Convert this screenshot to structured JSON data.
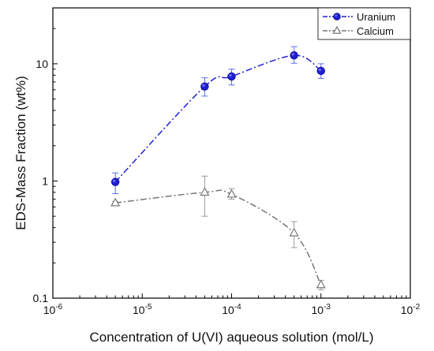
{
  "chart_data": {
    "type": "scatter",
    "xscale": "log",
    "yscale": "log",
    "xlabel": "Concentration of U(VI) aqueous solution (mol/L)",
    "ylabel": "EDS-Mass Fraction (wt%)",
    "xlim": [
      1e-06,
      0.01
    ],
    "ylim": [
      0.1,
      30
    ],
    "x_ticks": [
      {
        "value": 1e-06,
        "base": "10",
        "exp": "-6"
      },
      {
        "value": 1e-05,
        "base": "10",
        "exp": "-5"
      },
      {
        "value": 0.0001,
        "base": "10",
        "exp": "-4"
      },
      {
        "value": 0.001,
        "base": "10",
        "exp": "-3"
      },
      {
        "value": 0.01,
        "base": "10",
        "exp": "-2"
      }
    ],
    "y_ticks": [
      {
        "value": 0.1,
        "label": "0.1"
      },
      {
        "value": 1,
        "label": "1"
      },
      {
        "value": 10,
        "label": "10"
      }
    ],
    "legend_position": "top-right",
    "grid": false,
    "series": [
      {
        "name": "Uranium",
        "color": "#1f1fd6",
        "marker": "filled-circle",
        "line": "dash-dot",
        "x": [
          5e-06,
          5e-05,
          0.0001,
          0.0005,
          0.001
        ],
        "y": [
          0.98,
          6.4,
          7.8,
          11.8,
          8.7
        ],
        "err_low": [
          0.78,
          5.3,
          6.6,
          10.1,
          7.5
        ],
        "err_high": [
          1.17,
          7.6,
          9.0,
          14.0,
          10.0
        ]
      },
      {
        "name": "Calcium",
        "color": "#777777",
        "marker": "open-triangle",
        "line": "dash-dot",
        "x": [
          5e-06,
          5e-05,
          0.0001,
          0.0005,
          0.001
        ],
        "y": [
          0.65,
          0.8,
          0.77,
          0.36,
          0.13
        ],
        "err_low": [
          0.63,
          0.5,
          0.7,
          0.27,
          0.118
        ],
        "err_high": [
          0.67,
          1.1,
          0.86,
          0.45,
          0.142
        ]
      }
    ]
  }
}
